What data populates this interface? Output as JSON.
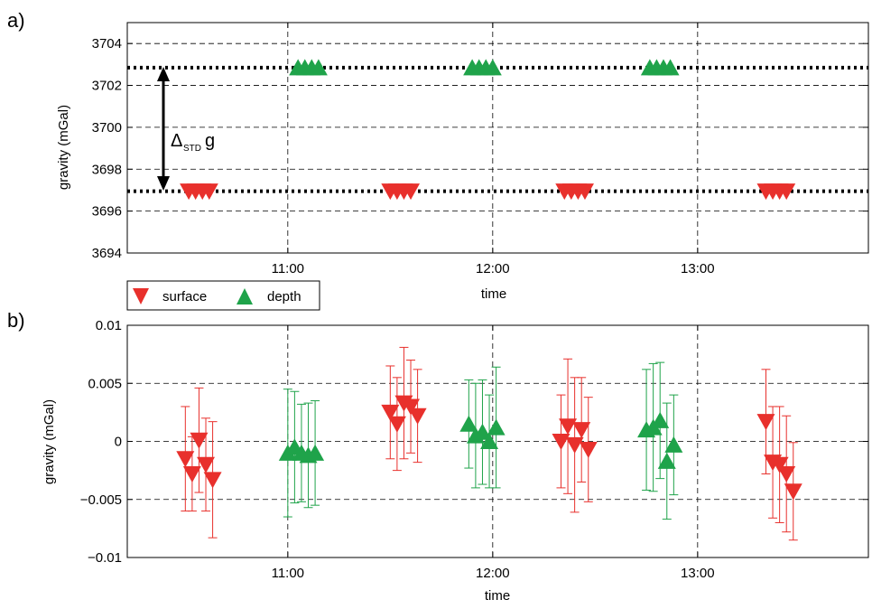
{
  "colors": {
    "surface": "#e8302c",
    "depth": "#1fa34a",
    "grid": "#000000"
  },
  "legend": {
    "surface_label": "surface",
    "depth_label": "depth"
  },
  "annotation": {
    "delta": "Δ",
    "sub": "STD",
    "g": "g"
  },
  "chart_data": [
    {
      "panel": "a)",
      "type": "scatter",
      "xlabel": "time",
      "ylabel": "gravity (mGal)",
      "xlim": [
        "10:13",
        "13:50"
      ],
      "ylim": [
        3694,
        3705
      ],
      "xticks": [
        "11:00",
        "12:00",
        "13:00"
      ],
      "yticks": [
        3694,
        3696,
        3698,
        3700,
        3702,
        3704
      ],
      "grid": true,
      "reference_lines": [
        3702.85,
        3696.95
      ],
      "series": [
        {
          "name": "surface",
          "marker": "triangle-down",
          "groups": [
            {
              "times": [
                "10:31",
                "10:33",
                "10:35",
                "10:37"
              ],
              "value": 3696.95
            },
            {
              "times": [
                "11:30",
                "11:32",
                "11:34",
                "11:36"
              ],
              "value": 3696.95
            },
            {
              "times": [
                "12:21",
                "12:23",
                "12:25",
                "12:27"
              ],
              "value": 3696.95
            },
            {
              "times": [
                "13:20",
                "13:22",
                "13:24",
                "13:26"
              ],
              "value": 3696.95
            }
          ]
        },
        {
          "name": "depth",
          "marker": "triangle-up",
          "groups": [
            {
              "times": [
                "11:03",
                "11:05",
                "11:07",
                "11:09"
              ],
              "value": 3702.85
            },
            {
              "times": [
                "11:54",
                "11:56",
                "11:58",
                "12:00"
              ],
              "value": 3702.85
            },
            {
              "times": [
                "12:46",
                "12:48",
                "12:50",
                "12:52"
              ],
              "value": 3702.85
            }
          ]
        }
      ]
    },
    {
      "panel": "b)",
      "type": "scatter",
      "xlabel": "time",
      "ylabel": "gravity (mGal)",
      "xlim": [
        "10:13",
        "13:50"
      ],
      "ylim": [
        -0.01,
        0.01
      ],
      "xticks": [
        "11:00",
        "12:00",
        "13:00"
      ],
      "yticks": [
        "−0.01",
        "−0.005",
        "0",
        "0.005",
        "0.01"
      ],
      "ytick_values": [
        -0.01,
        -0.005,
        0,
        0.005,
        0.01
      ],
      "grid": true,
      "error_bars": true,
      "series": [
        {
          "name": "surface",
          "marker": "triangle-down",
          "points": [
            {
              "time": "10:30",
              "value": -0.0015,
              "err": 0.0045
            },
            {
              "time": "10:32",
              "value": -0.0028,
              "err": 0.0032
            },
            {
              "time": "10:34",
              "value": 0.0001,
              "err": 0.0045
            },
            {
              "time": "10:36",
              "value": -0.002,
              "err": 0.004
            },
            {
              "time": "10:38",
              "value": -0.0033,
              "err": 0.005
            },
            {
              "time": "11:30",
              "value": 0.0025,
              "err": 0.004
            },
            {
              "time": "11:32",
              "value": 0.0015,
              "err": 0.004
            },
            {
              "time": "11:34",
              "value": 0.0033,
              "err": 0.0048
            },
            {
              "time": "11:36",
              "value": 0.003,
              "err": 0.004
            },
            {
              "time": "11:38",
              "value": 0.0022,
              "err": 0.004
            },
            {
              "time": "12:20",
              "value": 0.0,
              "err": 0.004
            },
            {
              "time": "12:22",
              "value": 0.0013,
              "err": 0.0058
            },
            {
              "time": "12:24",
              "value": -0.0003,
              "err": 0.0058
            },
            {
              "time": "12:26",
              "value": 0.001,
              "err": 0.0045
            },
            {
              "time": "12:28",
              "value": -0.0007,
              "err": 0.0045
            },
            {
              "time": "13:20",
              "value": 0.0017,
              "err": 0.0045
            },
            {
              "time": "13:22",
              "value": -0.0018,
              "err": 0.0048
            },
            {
              "time": "13:24",
              "value": -0.002,
              "err": 0.005
            },
            {
              "time": "13:26",
              "value": -0.0028,
              "err": 0.005
            },
            {
              "time": "13:28",
              "value": -0.0043,
              "err": 0.0042
            }
          ]
        },
        {
          "name": "depth",
          "marker": "triangle-up",
          "points": [
            {
              "time": "11:00",
              "value": -0.001,
              "err": 0.0055
            },
            {
              "time": "11:02",
              "value": -0.0005,
              "err": 0.0048
            },
            {
              "time": "11:04",
              "value": -0.001,
              "err": 0.0042
            },
            {
              "time": "11:06",
              "value": -0.0012,
              "err": 0.0045
            },
            {
              "time": "11:08",
              "value": -0.001,
              "err": 0.0045
            },
            {
              "time": "11:53",
              "value": 0.0015,
              "err": 0.0038
            },
            {
              "time": "11:55",
              "value": 0.0005,
              "err": 0.0045
            },
            {
              "time": "11:57",
              "value": 0.0008,
              "err": 0.0045
            },
            {
              "time": "11:59",
              "value": 0.0,
              "err": 0.004
            },
            {
              "time": "12:01",
              "value": 0.0012,
              "err": 0.0052
            },
            {
              "time": "12:45",
              "value": 0.001,
              "err": 0.0052
            },
            {
              "time": "12:47",
              "value": 0.0012,
              "err": 0.0055
            },
            {
              "time": "12:49",
              "value": 0.0018,
              "err": 0.005
            },
            {
              "time": "12:51",
              "value": -0.0017,
              "err": 0.005
            },
            {
              "time": "12:53",
              "value": -0.0003,
              "err": 0.0043
            }
          ]
        }
      ]
    }
  ]
}
